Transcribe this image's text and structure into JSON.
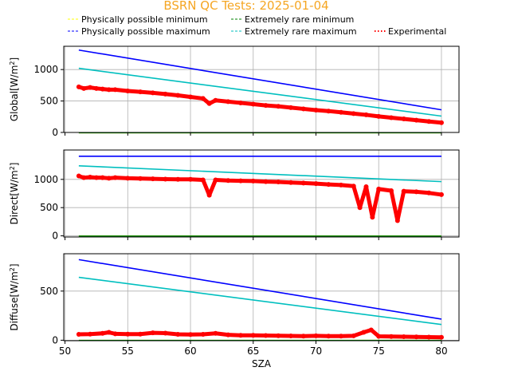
{
  "title": "BSRN QC Tests: 2025-01-04",
  "colors": {
    "title": "#f5a623",
    "phys_min": "#ffff00",
    "phys_max": "#0000ff",
    "rare_min": "#008000",
    "rare_max": "#00bfbf",
    "experimental": "#ff0000",
    "grid": "#b0b0b0"
  },
  "legend": {
    "phys_min": "Physically possible minimum",
    "phys_max": "Physically possible maximum",
    "rare_min": "Extremely rare minimum",
    "rare_max": "Extremely rare maximum",
    "experimental": "Experimental"
  },
  "chart_data": [
    {
      "type": "line",
      "name": "global",
      "ylabel": "Global[W/m$^2$]",
      "ylabel_text": "Global[W/m",
      "xlim": [
        49.9,
        81.4
      ],
      "ylim": [
        0,
        1370
      ],
      "yticks": [
        0,
        500,
        1000
      ],
      "grid": true,
      "series": [
        {
          "key": "phys_min",
          "x": [
            51.1,
            80.0
          ],
          "y": [
            -4,
            -4
          ]
        },
        {
          "key": "rare_min",
          "x": [
            51.1,
            80.0
          ],
          "y": [
            -4,
            -4
          ]
        },
        {
          "key": "phys_max",
          "x": [
            51.1,
            80.0
          ],
          "y": [
            1310,
            360
          ]
        },
        {
          "key": "rare_max",
          "x": [
            51.1,
            80.0
          ],
          "y": [
            1020,
            260
          ]
        },
        {
          "key": "experimental",
          "x": [
            51.1,
            51.5,
            52.0,
            52.5,
            53.0,
            53.5,
            54.0,
            55.0,
            56.0,
            57.0,
            58.0,
            59.0,
            60.0,
            61.0,
            61.5,
            62.0,
            63.0,
            64.0,
            65.0,
            66.0,
            67.0,
            68.0,
            69.0,
            70.0,
            71.0,
            72.0,
            73.0,
            74.0,
            75.0,
            76.0,
            77.0,
            78.0,
            79.0,
            80.0
          ],
          "y": [
            725,
            700,
            715,
            700,
            690,
            680,
            680,
            660,
            645,
            630,
            610,
            590,
            565,
            540,
            460,
            510,
            490,
            470,
            450,
            430,
            415,
            395,
            375,
            355,
            340,
            320,
            300,
            280,
            255,
            235,
            215,
            195,
            175,
            155
          ]
        }
      ]
    },
    {
      "type": "line",
      "name": "direct",
      "ylabel": "Direct[W/m$^2$]",
      "ylabel_text": "Direct[W/m",
      "xlim": [
        49.9,
        81.4
      ],
      "ylim": [
        -20,
        1520
      ],
      "yticks": [
        0,
        500,
        1000
      ],
      "grid": true,
      "series": [
        {
          "key": "phys_min",
          "x": [
            51.1,
            80.0
          ],
          "y": [
            -4,
            -4
          ]
        },
        {
          "key": "rare_min",
          "x": [
            51.1,
            80.0
          ],
          "y": [
            -4,
            -4
          ]
        },
        {
          "key": "phys_max",
          "x": [
            51.1,
            80.0
          ],
          "y": [
            1410,
            1410
          ]
        },
        {
          "key": "rare_max",
          "x": [
            51.1,
            80.0
          ],
          "y": [
            1240,
            960
          ]
        },
        {
          "key": "experimental",
          "x": [
            51.1,
            51.5,
            52.0,
            52.5,
            53.0,
            53.5,
            54.0,
            55.0,
            56.0,
            57.0,
            58.0,
            59.0,
            60.0,
            61.0,
            61.5,
            62.0,
            63.0,
            64.0,
            65.0,
            66.0,
            67.0,
            68.0,
            69.0,
            70.0,
            71.0,
            72.0,
            73.0,
            73.5,
            74.0,
            74.5,
            75.0,
            76.0,
            76.5,
            77.0,
            78.0,
            79.0,
            80.0
          ],
          "y": [
            1060,
            1030,
            1040,
            1030,
            1030,
            1020,
            1030,
            1020,
            1015,
            1010,
            1005,
            1000,
            1000,
            990,
            720,
            990,
            980,
            975,
            970,
            960,
            955,
            945,
            935,
            925,
            910,
            900,
            880,
            500,
            870,
            330,
            830,
            800,
            270,
            790,
            780,
            760,
            730
          ]
        }
      ]
    },
    {
      "type": "line",
      "name": "diffuse",
      "ylabel": "Diffuse[W/m$^2$]",
      "ylabel_text": "Diffuse[W/m",
      "xlabel": "SZA",
      "xlim": [
        49.9,
        81.4
      ],
      "ylim": [
        -5,
        880
      ],
      "yticks": [
        0,
        500
      ],
      "xticks": [
        50,
        55,
        60,
        65,
        70,
        75,
        80
      ],
      "grid": true,
      "series": [
        {
          "key": "phys_min",
          "x": [
            51.1,
            80.0
          ],
          "y": [
            -2,
            -2
          ]
        },
        {
          "key": "rare_min",
          "x": [
            51.1,
            80.0
          ],
          "y": [
            -2,
            -2
          ]
        },
        {
          "key": "phys_max",
          "x": [
            51.1,
            80.0
          ],
          "y": [
            820,
            215
          ]
        },
        {
          "key": "rare_max",
          "x": [
            51.1,
            80.0
          ],
          "y": [
            640,
            160
          ]
        },
        {
          "key": "experimental",
          "x": [
            51.1,
            52.0,
            53.0,
            53.5,
            54.0,
            55.0,
            56.0,
            57.0,
            58.0,
            59.0,
            60.0,
            61.0,
            62.0,
            63.0,
            64.0,
            65.0,
            66.0,
            67.0,
            68.0,
            69.0,
            70.0,
            71.0,
            72.0,
            73.0,
            73.8,
            74.4,
            75.0,
            76.0,
            77.0,
            78.0,
            79.0,
            80.0
          ],
          "y": [
            60,
            62,
            70,
            80,
            65,
            62,
            62,
            75,
            72,
            60,
            58,
            60,
            70,
            55,
            50,
            50,
            48,
            46,
            44,
            42,
            45,
            42,
            42,
            45,
            80,
            105,
            40,
            38,
            36,
            34,
            32,
            30
          ]
        }
      ]
    }
  ]
}
